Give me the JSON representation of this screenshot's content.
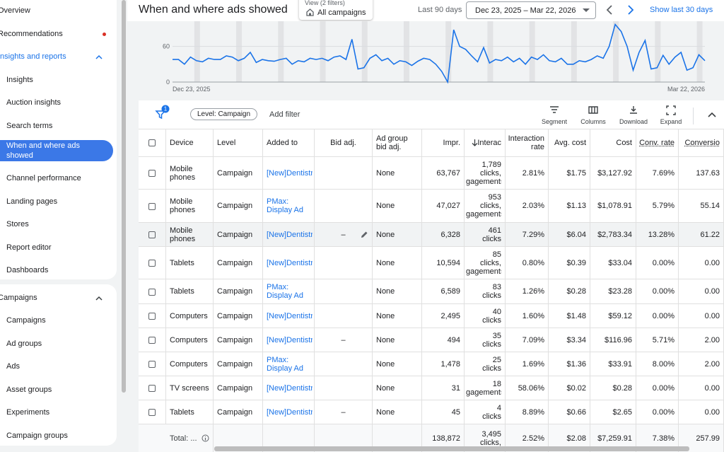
{
  "sidebar": {
    "top": [
      {
        "label": "Overview"
      },
      {
        "label": "Recommendations",
        "alert": true
      }
    ],
    "sections": [
      {
        "title": "Insights and reports",
        "active": true,
        "items": [
          {
            "label": "Insights"
          },
          {
            "label": "Auction insights"
          },
          {
            "label": "Search terms"
          },
          {
            "label": "When and where ads showed",
            "selected": true
          },
          {
            "label": "Channel performance"
          },
          {
            "label": "Landing pages"
          },
          {
            "label": "Stores"
          },
          {
            "label": "Report editor"
          },
          {
            "label": "Dashboards"
          }
        ]
      },
      {
        "title": "Campaigns",
        "items": [
          {
            "label": "Campaigns"
          },
          {
            "label": "Ad groups"
          },
          {
            "label": "Ads"
          },
          {
            "label": "Asset groups"
          },
          {
            "label": "Experiments"
          },
          {
            "label": "Campaign groups"
          }
        ]
      }
    ]
  },
  "header": {
    "title": "When and where ads showed",
    "view_filter": {
      "label": "View (2 filters)",
      "value": "All campaigns"
    },
    "date_range_label": "Last 90 days",
    "date_range": "Dec 23, 2025 – Mar 22, 2026",
    "show_last": "Show last 30 days"
  },
  "chart": {
    "ylim": [
      0,
      100
    ],
    "yticks": [
      0,
      60
    ],
    "x_labels": [
      "Dec 23, 2025",
      "Mar 22, 2026"
    ],
    "values": [
      38,
      38,
      30,
      42,
      36,
      34,
      40,
      38,
      38,
      44,
      42,
      36,
      40,
      50,
      33,
      38,
      36,
      35,
      38,
      40,
      30,
      36,
      34,
      40,
      38,
      40,
      36,
      42,
      44,
      38,
      72,
      22,
      24,
      40,
      46,
      36,
      40,
      30,
      36,
      34,
      28,
      35,
      40,
      38,
      30,
      18,
      0,
      88,
      60,
      55,
      44,
      34,
      58,
      32,
      38,
      36,
      42,
      34,
      40,
      30,
      42,
      38,
      46,
      36,
      34,
      40,
      30,
      30,
      36,
      34,
      38,
      44,
      40,
      60,
      97,
      85,
      60,
      20,
      50,
      70,
      22,
      24,
      45,
      30,
      42,
      50,
      20,
      24,
      46,
      36
    ]
  },
  "toolbar": {
    "filter_count": 1,
    "level_chip": "Level: Campaign",
    "add_filter": "Add filter",
    "actions": [
      "Segment",
      "Columns",
      "Download",
      "Expand"
    ]
  },
  "table": {
    "columns": [
      "Device",
      "Level",
      "Added to",
      "Bid adj.",
      [
        "Ad group",
        "bid adj."
      ],
      "Impr.",
      "Interac",
      [
        "Interaction",
        "rate"
      ],
      "Avg. cost",
      "Cost",
      "Conv. rate",
      "Conversio"
    ],
    "rows": [
      {
        "cells": [
          [
            "Mobile",
            "phones"
          ],
          "Campaign",
          "[New]Dentistry",
          null,
          "None",
          "63,767",
          [
            "1,789",
            "clicks,",
            "gagements"
          ],
          "2.81%",
          "$1.75",
          "$3,127.92",
          "7.69%",
          "137.63"
        ]
      },
      {
        "cells": [
          [
            "Mobile",
            "phones"
          ],
          "Campaign",
          [
            "PMax:",
            "Display Ad"
          ],
          null,
          "None",
          "47,027",
          [
            "953",
            "clicks,",
            "gagements"
          ],
          "2.03%",
          "$1.13",
          "$1,078.91",
          "5.79%",
          "55.14"
        ]
      },
      {
        "cells": [
          [
            "Mobile",
            "phones"
          ],
          "Campaign",
          "[New]Dentistry",
          "–",
          "None",
          "6,328",
          [
            "461",
            "clicks"
          ],
          "7.29%",
          "$6.04",
          "$2,783.34",
          "13.28%",
          "61.22"
        ],
        "highlighted": true
      },
      {
        "cells": [
          "Tablets",
          "Campaign",
          "[New]Dentistry",
          null,
          "None",
          "10,594",
          [
            "85",
            "clicks,",
            "gagements"
          ],
          "0.80%",
          "$0.39",
          "$33.04",
          "0.00%",
          "0.00"
        ]
      },
      {
        "cells": [
          "Tablets",
          "Campaign",
          [
            "PMax:",
            "Display Ad"
          ],
          null,
          "None",
          "6,589",
          [
            "83",
            "clicks"
          ],
          "1.26%",
          "$0.28",
          "$23.28",
          "0.00%",
          "0.00"
        ]
      },
      {
        "cells": [
          "Computers",
          "Campaign",
          "[New]Dentistry",
          null,
          "None",
          "2,495",
          [
            "40",
            "clicks"
          ],
          "1.60%",
          "$1.48",
          "$59.12",
          "0.00%",
          "0.00"
        ]
      },
      {
        "cells": [
          "Computers",
          "Campaign",
          "[New]Dentistry",
          "–",
          "None",
          "494",
          [
            "35",
            "clicks"
          ],
          "7.09%",
          "$3.34",
          "$116.96",
          "5.71%",
          "2.00"
        ]
      },
      {
        "cells": [
          "Computers",
          "Campaign",
          [
            "PMax:",
            "Display Ad"
          ],
          null,
          "None",
          "1,478",
          [
            "25",
            "clicks"
          ],
          "1.69%",
          "$1.36",
          "$33.91",
          "8.00%",
          "2.00"
        ]
      },
      {
        "cells": [
          "TV screens",
          "Campaign",
          "[New]Dentistry",
          null,
          "None",
          "31",
          [
            "18",
            "gagements"
          ],
          "58.06%",
          "$0.02",
          "$0.28",
          "0.00%",
          "0.00"
        ]
      },
      {
        "cells": [
          "Tablets",
          "Campaign",
          "[New]Dentistry",
          "–",
          "None",
          "45",
          [
            "4",
            "clicks"
          ],
          "8.89%",
          "$0.66",
          "$2.65",
          "0.00%",
          "0.00"
        ]
      }
    ],
    "total": {
      "cells": [
        "Total: ...",
        null,
        null,
        null,
        null,
        "138,872",
        [
          "3,495",
          "clicks,"
        ],
        "2.52%",
        "$2.08",
        "$7,259.91",
        "7.38%",
        "257.99"
      ]
    }
  }
}
